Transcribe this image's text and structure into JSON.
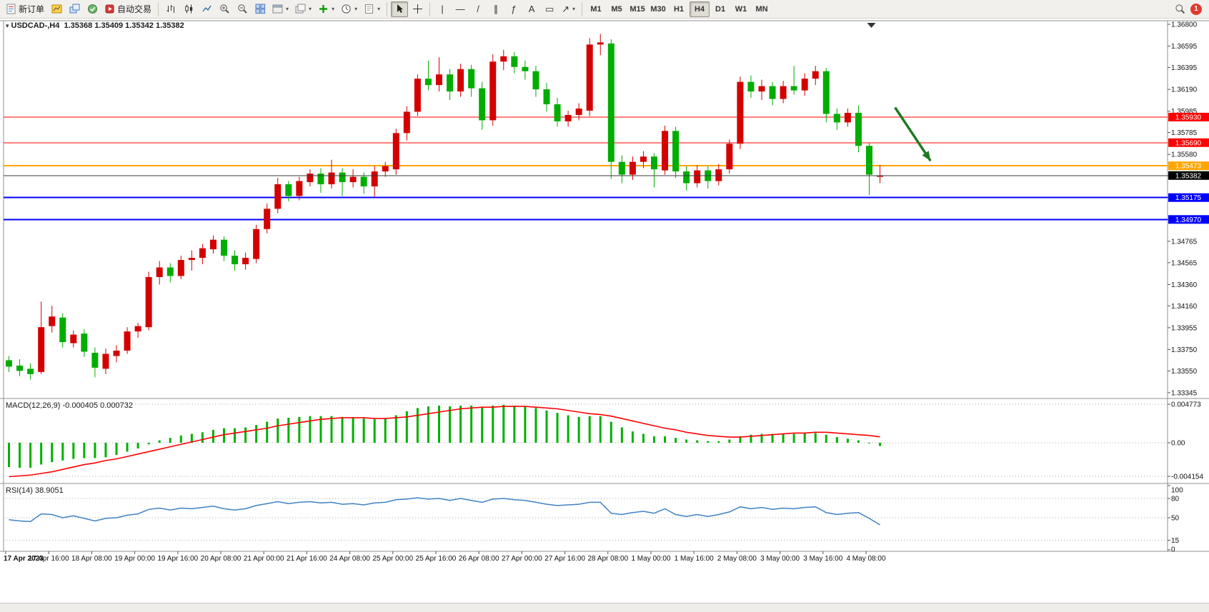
{
  "toolbar": {
    "new_order": {
      "label": "新订单"
    },
    "auto_trading": {
      "label": "自动交易"
    },
    "timeframes": [
      "M1",
      "M5",
      "M15",
      "M30",
      "H1",
      "H4",
      "D1",
      "W1",
      "MN"
    ],
    "active_timeframe": "H4",
    "notification_count": "1"
  },
  "icons": {
    "collapse": "▾",
    "dropdown": "▾",
    "vline": "|",
    "hline": "—",
    "trendline": "/",
    "channel": "∥",
    "fibo": "ƒ",
    "text_tool": "A",
    "label_tool": "▭",
    "arrows_tool": "↗"
  },
  "chart": {
    "symbol_period": "USDCAD-,H4",
    "ohlc_text": "1.35368 1.35409 1.35342 1.35382",
    "open": "1.35368",
    "high": "1.35409",
    "low": "1.35342",
    "close": "1.35382"
  },
  "indicators": {
    "macd": {
      "label": "MACD(12,26,9)",
      "values": "-0.000405 0.000732"
    },
    "rsi": {
      "label": "RSI(14)",
      "value": "38.9051"
    }
  },
  "chart_data": {
    "type": "candlestick",
    "symbol": "USDCAD",
    "period": "H4",
    "colors": {
      "bull": "#d40000",
      "bear": "#00ad00",
      "macd_hist": "#00b000",
      "macd_signal": "#ff0000",
      "rsi_line": "#3f82c4",
      "level_red": "#ff0000",
      "level_orange": "#ffa500",
      "level_blue": "#0000ff",
      "current_line": "#3a3a3a",
      "current_box": "#000000",
      "arrow": "#1f7a1f"
    },
    "price_axis": {
      "min": 1.33345,
      "max": 1.368,
      "ticks": [
        "1.36800",
        "1.36595",
        "1.36395",
        "1.36190",
        "1.35985",
        "1.35785",
        "1.35580",
        "1.35380",
        "1.35175",
        "1.34970",
        "1.34765",
        "1.34565",
        "1.34360",
        "1.34160",
        "1.33955",
        "1.33750",
        "1.33550",
        "1.33345"
      ]
    },
    "levels": [
      {
        "price": 1.3593,
        "label": "1.35930",
        "color": "#ff0000",
        "width": 1
      },
      {
        "price": 1.3569,
        "label": "1.35690",
        "color": "#ff0000",
        "width": 1
      },
      {
        "price": 1.35473,
        "label": "1.35473",
        "color": "#ffa500",
        "width": 2
      },
      {
        "price": 1.35175,
        "label": "1.35175",
        "color": "#0000ff",
        "width": 2
      },
      {
        "price": 1.3497,
        "label": "1.34970",
        "color": "#0000ff",
        "width": 2
      }
    ],
    "current_price": {
      "price": 1.35382,
      "label": "1.35382"
    },
    "candles": [
      [
        1.3365,
        1.3369,
        1.3354,
        1.3359
      ],
      [
        1.336,
        1.3366,
        1.335,
        1.3355
      ],
      [
        1.3357,
        1.3362,
        1.3347,
        1.3352
      ],
      [
        1.3354,
        1.342,
        1.3352,
        1.3396
      ],
      [
        1.3397,
        1.3416,
        1.3391,
        1.3406
      ],
      [
        1.3405,
        1.3409,
        1.3377,
        1.3382
      ],
      [
        1.3381,
        1.3393,
        1.3377,
        1.3389
      ],
      [
        1.339,
        1.3394,
        1.3368,
        1.3373
      ],
      [
        1.3372,
        1.3377,
        1.3349,
        1.3358
      ],
      [
        1.3357,
        1.3376,
        1.3352,
        1.3371
      ],
      [
        1.3369,
        1.3379,
        1.3363,
        1.3374
      ],
      [
        1.3374,
        1.3396,
        1.3371,
        1.3392
      ],
      [
        1.3392,
        1.34,
        1.3386,
        1.3397
      ],
      [
        1.3396,
        1.3448,
        1.3393,
        1.3443
      ],
      [
        1.3443,
        1.3458,
        1.3436,
        1.3452
      ],
      [
        1.3452,
        1.3456,
        1.3438,
        1.3444
      ],
      [
        1.3444,
        1.3463,
        1.3441,
        1.3459
      ],
      [
        1.3459,
        1.3468,
        1.3449,
        1.3461
      ],
      [
        1.3461,
        1.3474,
        1.3455,
        1.347
      ],
      [
        1.3469,
        1.3482,
        1.3465,
        1.3478
      ],
      [
        1.3478,
        1.3481,
        1.3458,
        1.3463
      ],
      [
        1.3463,
        1.3468,
        1.3449,
        1.3455
      ],
      [
        1.3455,
        1.3466,
        1.345,
        1.3461
      ],
      [
        1.346,
        1.3492,
        1.3456,
        1.3488
      ],
      [
        1.3488,
        1.3512,
        1.3484,
        1.3507
      ],
      [
        1.3507,
        1.3536,
        1.3503,
        1.353
      ],
      [
        1.353,
        1.3533,
        1.3514,
        1.3519
      ],
      [
        1.3519,
        1.3537,
        1.3515,
        1.3533
      ],
      [
        1.3532,
        1.3544,
        1.3528,
        1.354
      ],
      [
        1.354,
        1.3545,
        1.3522,
        1.353
      ],
      [
        1.353,
        1.3553,
        1.3526,
        1.3541
      ],
      [
        1.3541,
        1.3545,
        1.3519,
        1.3532
      ],
      [
        1.3532,
        1.3544,
        1.3527,
        1.3537
      ],
      [
        1.3537,
        1.3541,
        1.3521,
        1.3528
      ],
      [
        1.3528,
        1.3547,
        1.3518,
        1.3542
      ],
      [
        1.3542,
        1.3551,
        1.3537,
        1.3547
      ],
      [
        1.3544,
        1.3582,
        1.3539,
        1.3578
      ],
      [
        1.3578,
        1.3603,
        1.3571,
        1.3598
      ],
      [
        1.3598,
        1.3633,
        1.3594,
        1.3629
      ],
      [
        1.3629,
        1.3646,
        1.3618,
        1.3623
      ],
      [
        1.3623,
        1.3649,
        1.3617,
        1.3633
      ],
      [
        1.3633,
        1.3638,
        1.3609,
        1.3617
      ],
      [
        1.3617,
        1.3643,
        1.3612,
        1.3638
      ],
      [
        1.3638,
        1.3642,
        1.3612,
        1.362
      ],
      [
        1.362,
        1.3626,
        1.3581,
        1.359
      ],
      [
        1.359,
        1.3652,
        1.3585,
        1.3645
      ],
      [
        1.3645,
        1.3656,
        1.3637,
        1.365
      ],
      [
        1.365,
        1.3654,
        1.3634,
        1.364
      ],
      [
        1.364,
        1.3646,
        1.3628,
        1.3636
      ],
      [
        1.3636,
        1.3641,
        1.3612,
        1.3619
      ],
      [
        1.3619,
        1.3625,
        1.3598,
        1.3605
      ],
      [
        1.3605,
        1.3611,
        1.3584,
        1.3589
      ],
      [
        1.3589,
        1.3599,
        1.3584,
        1.3595
      ],
      [
        1.3595,
        1.3606,
        1.359,
        1.3601
      ],
      [
        1.3599,
        1.3667,
        1.3594,
        1.3661
      ],
      [
        1.3661,
        1.3671,
        1.3651,
        1.3663
      ],
      [
        1.3662,
        1.3666,
        1.3535,
        1.3551
      ],
      [
        1.3551,
        1.3557,
        1.3531,
        1.3539
      ],
      [
        1.3539,
        1.3556,
        1.3534,
        1.3551
      ],
      [
        1.3551,
        1.3561,
        1.3545,
        1.3556
      ],
      [
        1.3556,
        1.3559,
        1.3527,
        1.3544
      ],
      [
        1.3543,
        1.3585,
        1.3539,
        1.358
      ],
      [
        1.358,
        1.3584,
        1.3536,
        1.3542
      ],
      [
        1.3542,
        1.3547,
        1.3524,
        1.3531
      ],
      [
        1.3531,
        1.3548,
        1.3527,
        1.3543
      ],
      [
        1.3543,
        1.3547,
        1.3526,
        1.3533
      ],
      [
        1.3533,
        1.3549,
        1.3529,
        1.3544
      ],
      [
        1.3544,
        1.3572,
        1.354,
        1.3568
      ],
      [
        1.3568,
        1.3631,
        1.3563,
        1.3626
      ],
      [
        1.3626,
        1.3632,
        1.3611,
        1.3617
      ],
      [
        1.3617,
        1.3628,
        1.3609,
        1.3622
      ],
      [
        1.3622,
        1.3626,
        1.3604,
        1.361
      ],
      [
        1.361,
        1.3627,
        1.3606,
        1.3622
      ],
      [
        1.3622,
        1.3641,
        1.3614,
        1.3618
      ],
      [
        1.3618,
        1.3634,
        1.3613,
        1.3629
      ],
      [
        1.3629,
        1.3641,
        1.3623,
        1.3636
      ],
      [
        1.3636,
        1.3639,
        1.3588,
        1.3596
      ],
      [
        1.3596,
        1.3601,
        1.3581,
        1.3588
      ],
      [
        1.3588,
        1.3601,
        1.3584,
        1.3597
      ],
      [
        1.3597,
        1.3604,
        1.356,
        1.3566
      ],
      [
        1.3566,
        1.3569,
        1.352,
        1.3539
      ],
      [
        1.3537,
        1.3548,
        1.3531,
        1.35382
      ]
    ],
    "macd": {
      "label": "MACD(12,26,9)",
      "current_macd": -0.000405,
      "current_signal": 0.000732,
      "axis_labels": [
        "0.004773",
        "0.00",
        "-0.004154"
      ],
      "axis_values": [
        0.004773,
        0,
        -0.004154
      ],
      "histogram": [
        -0.003,
        -0.0031,
        -0.0031,
        -0.0027,
        -0.0024,
        -0.0022,
        -0.002,
        -0.0019,
        -0.0019,
        -0.0018,
        -0.0015,
        -0.0011,
        -0.0007,
        -0.0002,
        0.0003,
        0.0006,
        0.0009,
        0.0011,
        0.0013,
        0.0016,
        0.0018,
        0.0018,
        0.0019,
        0.0022,
        0.0026,
        0.003,
        0.0031,
        0.0032,
        0.0033,
        0.0033,
        0.0033,
        0.0032,
        0.0031,
        0.003,
        0.0029,
        0.003,
        0.0034,
        0.0039,
        0.0043,
        0.0045,
        0.0046,
        0.0045,
        0.0046,
        0.0046,
        0.0044,
        0.0046,
        0.0047,
        0.0046,
        0.0045,
        0.0043,
        0.004,
        0.0037,
        0.0034,
        0.0032,
        0.0033,
        0.0033,
        0.0026,
        0.0019,
        0.0014,
        0.0011,
        0.0008,
        0.0008,
        0.0006,
        0.0004,
        0.0003,
        0.0002,
        0.0002,
        0.0004,
        0.0008,
        0.001,
        0.0011,
        0.0011,
        0.0011,
        0.0011,
        0.0012,
        0.0012,
        0.001,
        0.0007,
        0.0005,
        0.0003,
        0.0,
        -0.000405
      ],
      "signal": [
        -0.0042,
        -0.0041,
        -0.004,
        -0.0038,
        -0.0036,
        -0.0033,
        -0.003,
        -0.0027,
        -0.0025,
        -0.0022,
        -0.002,
        -0.0017,
        -0.0014,
        -0.0011,
        -0.0008,
        -0.0005,
        -0.0002,
        0.0001,
        0.0004,
        0.0007,
        0.001,
        0.0012,
        0.0014,
        0.0016,
        0.0018,
        0.0021,
        0.0023,
        0.0025,
        0.0027,
        0.0029,
        0.003,
        0.0031,
        0.0031,
        0.0031,
        0.003,
        0.003,
        0.0031,
        0.0032,
        0.0034,
        0.0036,
        0.0038,
        0.004,
        0.0042,
        0.0043,
        0.0044,
        0.0044,
        0.0045,
        0.0045,
        0.0045,
        0.0044,
        0.0043,
        0.0042,
        0.004,
        0.0038,
        0.0036,
        0.0035,
        0.0033,
        0.003,
        0.0027,
        0.0024,
        0.0021,
        0.0018,
        0.0016,
        0.0013,
        0.0011,
        0.0009,
        0.0008,
        0.0007,
        0.0007,
        0.0008,
        0.0009,
        0.001,
        0.0011,
        0.0012,
        0.0012,
        0.0013,
        0.0013,
        0.0012,
        0.0011,
        0.001,
        0.0009,
        0.000732
      ]
    },
    "rsi": {
      "label": "RSI(14)",
      "current": 38.9051,
      "levels": [
        80,
        50,
        15
      ],
      "axis_labels": [
        "100",
        "80",
        "50",
        "15",
        "0"
      ],
      "values": [
        47,
        45,
        44,
        56,
        55,
        50,
        53,
        49,
        45,
        49,
        50,
        54,
        56,
        63,
        65,
        62,
        65,
        64,
        66,
        68,
        64,
        62,
        64,
        69,
        72,
        75,
        72,
        74,
        75,
        73,
        74,
        71,
        72,
        70,
        73,
        74,
        78,
        79,
        81,
        79,
        80,
        77,
        80,
        77,
        74,
        79,
        80,
        78,
        77,
        74,
        71,
        69,
        70,
        71,
        74,
        74,
        57,
        55,
        58,
        60,
        57,
        64,
        55,
        52,
        55,
        52,
        55,
        59,
        67,
        64,
        66,
        63,
        65,
        64,
        66,
        67,
        58,
        55,
        57,
        58,
        49,
        38.9
      ]
    },
    "time_axis": {
      "bars_per_label": 4,
      "labels": [
        "17 Apr 2023",
        "17 Apr 16:00",
        "18 Apr 08:00",
        "19 Apr 00:00",
        "19 Apr 16:00",
        "20 Apr 08:00",
        "21 Apr 00:00",
        "21 Apr 16:00",
        "24 Apr 08:00",
        "25 Apr 00:00",
        "25 Apr 16:00",
        "26 Apr 08:00",
        "27 Apr 00:00",
        "27 Apr 16:00",
        "28 Apr 08:00",
        "1 May 00:00",
        "1 May 16:00",
        "2 May 08:00",
        "3 May 00:00",
        "3 May 16:00",
        "4 May 08:00"
      ]
    },
    "annotation_arrow": {
      "bar1": 82.4,
      "price1": 1.3602,
      "bar2": 85.7,
      "price2": 1.3552
    },
    "shift_marker_bar": 80.2
  }
}
